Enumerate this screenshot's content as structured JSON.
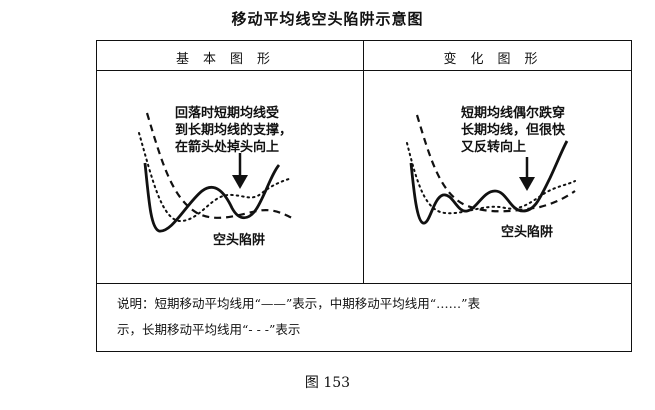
{
  "title": "移动平均线空头陷阱示意图",
  "panels": {
    "basic_header": "基本图形",
    "variant_header": "变化图形",
    "basic_note": [
      "回落时短期均线受",
      "到长期均线的支撑，",
      "在箭头处掉头向上"
    ],
    "variant_note": [
      "短期均线偶尔跌穿",
      "长期均线，但很快",
      "又反转向上"
    ],
    "basic_label": "空头陷阱",
    "variant_label": "空头陷阱"
  },
  "description": [
    "说明：短期移动平均线用“——”表示，中期移动平均线用“……”表",
    "示，长期移动平均线用“- - -”表示"
  ],
  "figure_caption": "图 153"
}
